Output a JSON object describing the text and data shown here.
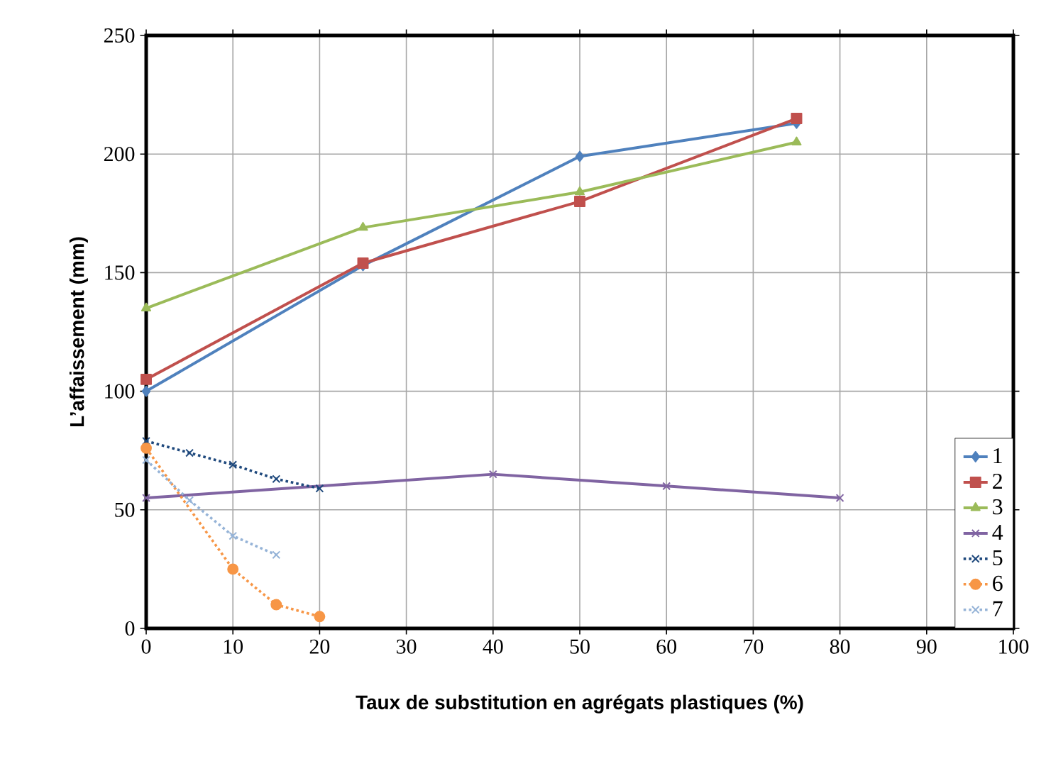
{
  "chart_data": {
    "type": "line",
    "xlabel": "Taux de substitution en agrégats plastiques (%)",
    "ylabel": "L’affaissement (mm)",
    "xlim": [
      0,
      100
    ],
    "ylim": [
      0,
      250
    ],
    "xticks": [
      0,
      10,
      20,
      30,
      40,
      50,
      60,
      70,
      80,
      90,
      100
    ],
    "yticks": [
      0,
      50,
      100,
      150,
      200,
      250
    ],
    "grid": true,
    "legend": "bottom right",
    "series": [
      {
        "name": "1",
        "color": "#4f81bd",
        "marker": "diamond",
        "line_style": "solid",
        "x": [
          0,
          25,
          50,
          75
        ],
        "values": [
          100,
          153,
          199,
          213
        ]
      },
      {
        "name": "2",
        "color": "#c0504d",
        "marker": "square",
        "line_style": "solid",
        "x": [
          0,
          25,
          50,
          75
        ],
        "values": [
          105,
          154,
          180,
          215
        ]
      },
      {
        "name": "3",
        "color": "#9bbb59",
        "marker": "triangle",
        "line_style": "solid",
        "x": [
          0,
          25,
          50,
          75
        ],
        "values": [
          135,
          169,
          184,
          205
        ]
      },
      {
        "name": "4",
        "color": "#8064a2",
        "marker": "cross",
        "line_style": "solid",
        "x": [
          0,
          40,
          60,
          80
        ],
        "values": [
          55,
          65,
          60,
          55
        ]
      },
      {
        "name": "5",
        "color": "#1f497d",
        "marker": "cross",
        "line_style": "dotted",
        "x": [
          0,
          5,
          10,
          15,
          20
        ],
        "values": [
          79,
          74,
          69,
          63,
          59
        ]
      },
      {
        "name": "6",
        "color": "#f79646",
        "marker": "circle",
        "line_style": "dotted",
        "x": [
          0,
          10,
          15,
          20
        ],
        "values": [
          76,
          25,
          10,
          5
        ]
      },
      {
        "name": "7",
        "color": "#95b3d7",
        "marker": "cross",
        "line_style": "dotted",
        "x": [
          0,
          5,
          10,
          15
        ],
        "values": [
          71,
          54,
          39,
          31
        ]
      }
    ]
  }
}
